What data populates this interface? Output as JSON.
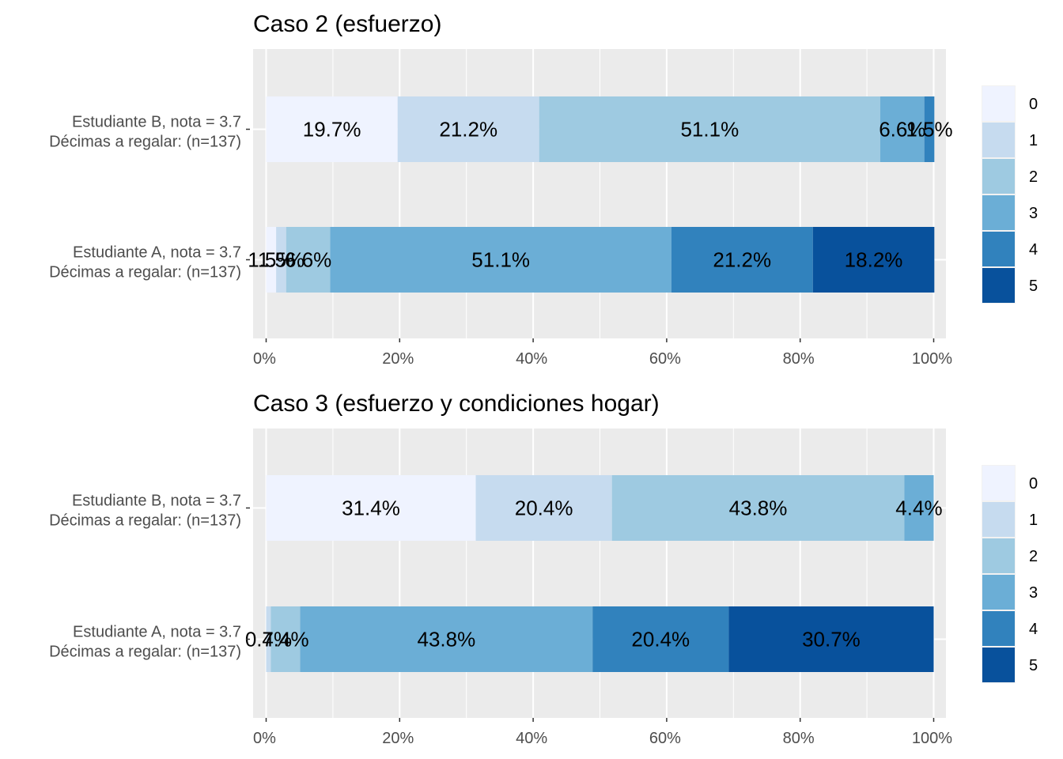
{
  "palette": [
    "#eff3ff",
    "#c6dbef",
    "#9ecae1",
    "#6baed6",
    "#3182bd",
    "#08519c"
  ],
  "panel_background": "#ebebeb",
  "chart_data": [
    {
      "type": "bar",
      "orientation": "horizontal",
      "stacked": true,
      "title": "Caso 2 (esfuerzo)",
      "categories": [
        "Estudiante B, nota = 3.7\nDécimas a regalar: (n=137)",
        "Estudiante A, nota = 3.7\nDécimas a regalar: (n=137)"
      ],
      "xlim": [
        0,
        100
      ],
      "xticks": [
        "0%",
        "20%",
        "40%",
        "60%",
        "80%",
        "100%"
      ],
      "grid": true,
      "legend": {
        "position": "right",
        "title": "",
        "entries": [
          "0",
          "1",
          "2",
          "3",
          "4",
          "5"
        ]
      },
      "series": [
        {
          "name": "0",
          "values": [
            19.7,
            1.5
          ],
          "labels": [
            "19.7%",
            "1.5%"
          ]
        },
        {
          "name": "1",
          "values": [
            21.2,
            1.5
          ],
          "labels": [
            "21.2%",
            "1.5%"
          ]
        },
        {
          "name": "2",
          "values": [
            51.1,
            6.6
          ],
          "labels": [
            "51.1%",
            "6.6%"
          ]
        },
        {
          "name": "3",
          "values": [
            6.6,
            51.1
          ],
          "labels": [
            "6.6%",
            "51.1%"
          ]
        },
        {
          "name": "4",
          "values": [
            1.5,
            21.2
          ],
          "labels": [
            "1.5%",
            "21.2%"
          ]
        },
        {
          "name": "5",
          "values": [
            0,
            18.2
          ],
          "labels": [
            "",
            "18.2%"
          ]
        }
      ]
    },
    {
      "type": "bar",
      "orientation": "horizontal",
      "stacked": true,
      "title": "Caso 3 (esfuerzo y condiciones hogar)",
      "categories": [
        "Estudiante B, nota = 3.7\nDécimas a regalar: (n=137)",
        "Estudiante A, nota = 3.7\nDécimas a regalar: (n=137)"
      ],
      "xlim": [
        0,
        100
      ],
      "xticks": [
        "0%",
        "20%",
        "40%",
        "60%",
        "80%",
        "100%"
      ],
      "grid": true,
      "legend": {
        "position": "right",
        "title": "",
        "entries": [
          "0",
          "1",
          "2",
          "3",
          "4",
          "5"
        ]
      },
      "series": [
        {
          "name": "0",
          "values": [
            31.4,
            0
          ],
          "labels": [
            "31.4%",
            ""
          ]
        },
        {
          "name": "1",
          "values": [
            20.4,
            0.7
          ],
          "labels": [
            "20.4%",
            "0.7%"
          ]
        },
        {
          "name": "2",
          "values": [
            43.8,
            4.4
          ],
          "labels": [
            "43.8%",
            "4.4%"
          ]
        },
        {
          "name": "3",
          "values": [
            4.4,
            43.8
          ],
          "labels": [
            "4.4%",
            "43.8%"
          ]
        },
        {
          "name": "4",
          "values": [
            0,
            20.4
          ],
          "labels": [
            "",
            "20.4%"
          ]
        },
        {
          "name": "5",
          "values": [
            0,
            30.7
          ],
          "labels": [
            "",
            "30.7%"
          ]
        }
      ]
    }
  ]
}
